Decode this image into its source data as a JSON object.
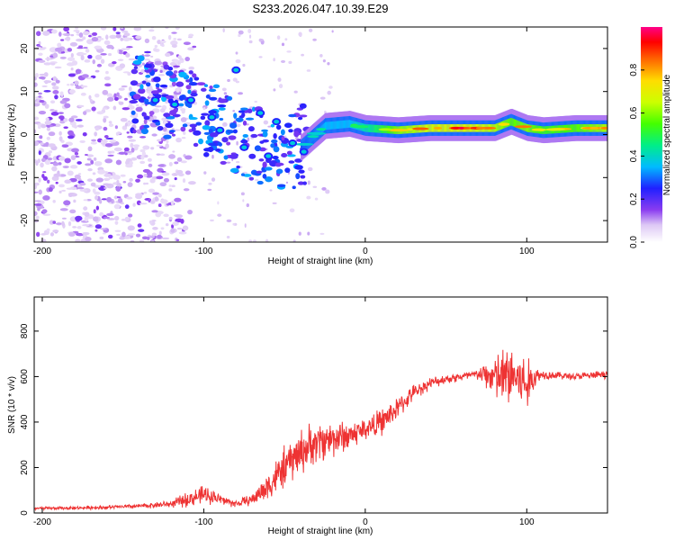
{
  "title": "S233.2026.047.10.39.E29",
  "chart_data": [
    {
      "id": "spectrogram",
      "type": "heatmap",
      "xlabel": "Height of straight line (km)",
      "ylabel": "Frequency (Hz)",
      "xlim": [
        -205,
        150
      ],
      "ylim": [
        -25,
        25
      ],
      "xticks": [
        -200,
        -100,
        0,
        100
      ],
      "yticks": [
        -20,
        -10,
        0,
        10,
        20
      ],
      "ridge": {
        "x": [
          -145,
          -120,
          -105,
          -95,
          -85,
          -70,
          -55,
          -40,
          -25,
          -10,
          0,
          20,
          40,
          60,
          80,
          90,
          100,
          110,
          130,
          150
        ],
        "freq": [
          9,
          8,
          6,
          3,
          1,
          -2,
          -4,
          -3,
          2,
          2.5,
          1.5,
          1,
          1.5,
          1.5,
          1.5,
          3,
          1.5,
          1,
          1.5,
          1.5
        ],
        "amplitude": [
          0.35,
          0.45,
          0.5,
          0.45,
          0.4,
          0.45,
          0.4,
          0.4,
          0.5,
          0.5,
          0.6,
          0.85,
          0.95,
          0.98,
          0.9,
          0.8,
          0.85,
          0.75,
          0.8,
          0.9
        ]
      },
      "colorbar": {
        "label": "Normalized spectral amplitude",
        "range": [
          0,
          1
        ],
        "ticks": [
          0.0,
          0.2,
          0.4,
          0.6,
          0.8
        ],
        "tick_labels": [
          "0.0",
          "0.2",
          "0.4",
          "0.6",
          "0.8"
        ]
      }
    },
    {
      "id": "snr",
      "type": "line",
      "xlabel": "Height of straight line (km)",
      "ylabel": "SNR (10 * v/v)",
      "xlim": [
        -205,
        150
      ],
      "ylim": [
        0,
        950
      ],
      "xticks": [
        -200,
        -100,
        0,
        100
      ],
      "yticks": [
        0,
        200,
        400,
        600,
        800
      ],
      "color": "#ee3333",
      "series": [
        {
          "name": "SNR",
          "x": [
            -205,
            -180,
            -160,
            -140,
            -120,
            -110,
            -100,
            -95,
            -90,
            -80,
            -70,
            -60,
            -50,
            -40,
            -30,
            -20,
            -10,
            0,
            10,
            20,
            30,
            40,
            50,
            60,
            70,
            80,
            85,
            90,
            95,
            100,
            105,
            110,
            120,
            130,
            140,
            150
          ],
          "y": [
            20,
            22,
            25,
            30,
            40,
            60,
            80,
            75,
            60,
            40,
            60,
            120,
            200,
            270,
            310,
            330,
            340,
            370,
            400,
            460,
            530,
            570,
            590,
            600,
            610,
            600,
            590,
            610,
            590,
            560,
            600,
            610,
            605,
            600,
            605,
            610
          ],
          "noise": [
            8,
            8,
            10,
            12,
            20,
            40,
            50,
            40,
            30,
            20,
            30,
            80,
            110,
            120,
            110,
            100,
            80,
            60,
            70,
            60,
            40,
            30,
            25,
            25,
            30,
            120,
            160,
            180,
            170,
            150,
            60,
            25,
            20,
            20,
            20,
            20
          ]
        }
      ]
    }
  ]
}
